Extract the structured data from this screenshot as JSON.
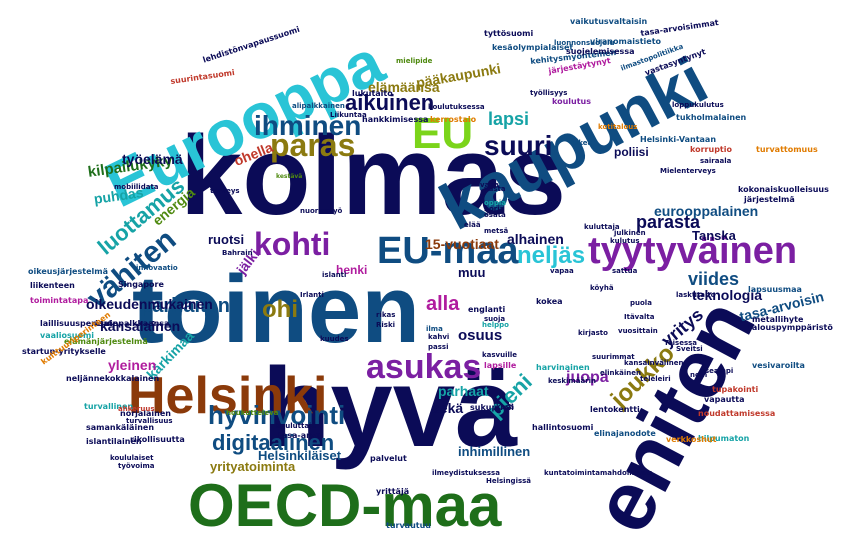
{
  "colors": {
    "navy": "#0b0b57",
    "blue": "#0f4c81",
    "teal": "#16a3a6",
    "cyan": "#29c4d6",
    "green": "#4f8a10",
    "dkgreen": "#1e6e1a",
    "lime": "#7bd41a",
    "olive": "#8b7a10",
    "brown": "#8b3a0a",
    "purple": "#7b1fa2",
    "magenta": "#b01c9e",
    "orange": "#e07b00",
    "red": "#c0392b"
  },
  "words": [
    {
      "text": "toinen",
      "color": "#0f4c81"
    },
    {
      "text": "kolmas",
      "color": "#0b0b57"
    },
    {
      "text": "hyvä",
      "color": "#0b0b57"
    },
    {
      "text": "eniten",
      "color": "#0b0b57"
    },
    {
      "text": "kaupunki",
      "color": "#0f4c81"
    },
    {
      "text": "Eurooppa",
      "color": "#29c4d6"
    },
    {
      "text": "OECD-maa",
      "color": "#1e6e1a"
    },
    {
      "text": "Helsinki",
      "color": "#8b3a0a"
    },
    {
      "text": "EU",
      "color": "#7bd41a"
    },
    {
      "text": "EU-maa",
      "color": "#0f4c81"
    },
    {
      "text": "tyytyväinen",
      "color": "#7b1fa2"
    },
    {
      "text": "asukas",
      "color": "#7b1fa2"
    },
    {
      "text": "hyvinvointi",
      "color": "#0f4c81"
    },
    {
      "text": "kohti",
      "color": "#7b1fa2"
    },
    {
      "text": "paras",
      "color": "#8b7a10"
    },
    {
      "text": "ihminen",
      "color": "#0f4c81"
    },
    {
      "text": "suuri",
      "color": "#0b0b57"
    },
    {
      "text": "neljäs",
      "color": "#29c4d6"
    },
    {
      "text": "vähiten",
      "color": "#0f4c81"
    },
    {
      "text": "luottamus",
      "color": "#16a3a6"
    },
    {
      "text": "digitaalinen",
      "color": "#0f4c81"
    },
    {
      "text": "aikuinen",
      "color": "#0b0b57"
    },
    {
      "text": "joukko",
      "color": "#8b7a10"
    },
    {
      "text": "pieni",
      "color": "#16a3a6"
    },
    {
      "text": "parhaiten",
      "color": "#0f4c81"
    },
    {
      "text": "ohi",
      "color": "#8b7a10"
    },
    {
      "text": "alla",
      "color": "#b01c9e"
    },
    {
      "text": "parasta",
      "color": "#0b0b57"
    },
    {
      "text": "yritys",
      "color": "#0b0b57"
    },
    {
      "text": "viides",
      "color": "#0f4c81"
    },
    {
      "text": "lapsi",
      "color": "#16a3a6"
    },
    {
      "text": "elämäänsä",
      "color": "#8b7a10"
    },
    {
      "text": "pääkaupunki",
      "color": "#8b7a10"
    },
    {
      "text": "kilpailukyky",
      "color": "#1e6e1a"
    },
    {
      "text": "puhdas",
      "color": "#16a3a6"
    },
    {
      "text": "energia",
      "color": "#4f8a10"
    },
    {
      "text": "ohella",
      "color": "#c0392b"
    },
    {
      "text": "työelämä",
      "color": "#0b0b57"
    },
    {
      "text": "15-vuotiaat",
      "color": "#8b3a0a"
    },
    {
      "text": "alhainen",
      "color": "#0b0b57"
    },
    {
      "text": "teknologia",
      "color": "#0b0b57"
    },
    {
      "text": "eurooppalainen",
      "color": "#0f4c81"
    },
    {
      "text": "Tanska",
      "color": "#0b0b57"
    },
    {
      "text": "tasa-arvoisin",
      "color": "#0f4c81"
    },
    {
      "text": "kansalainen",
      "color": "#0b0b57"
    },
    {
      "text": "oikeudenmukainen",
      "color": "#0b0b57"
    },
    {
      "text": "yrityatoiminta",
      "color": "#8b7a10"
    },
    {
      "text": "Helsinkiläiset",
      "color": "#0f4c81"
    },
    {
      "text": "inhimillinen",
      "color": "#0f4c81"
    },
    {
      "text": "kärkimaa",
      "color": "#16a3a6"
    },
    {
      "text": "yleinen",
      "color": "#b01c9e"
    },
    {
      "text": "osuus",
      "color": "#0b0b57"
    },
    {
      "text": "sekä",
      "color": "#0b0b57"
    },
    {
      "text": "parhaat",
      "color": "#16a3a6"
    },
    {
      "text": "juopa",
      "color": "#7b1fa2"
    },
    {
      "text": "muu",
      "color": "#0b0b57"
    },
    {
      "text": "ruotsi",
      "color": "#0b0b57"
    },
    {
      "text": "poliisi",
      "color": "#0b0b57"
    },
    {
      "text": "jälki",
      "color": "#7b1fa2"
    },
    {
      "text": "henki",
      "color": "#b01c9e"
    },
    {
      "text": "tasa-arvoisimmat",
      "color": "#0b0b57"
    },
    {
      "text": "vaikutusvaltaisin",
      "color": "#0f4c81"
    },
    {
      "text": "tyttösuomi",
      "color": "#0b0b57"
    },
    {
      "text": "luonnonsuojelu",
      "color": "#0f4c81"
    },
    {
      "text": "kestävä",
      "color": "#4f8a10"
    },
    {
      "text": "kehitysmyönteinen",
      "color": "#0f4c81"
    },
    {
      "text": "viranomaistieto",
      "color": "#0f4c81"
    },
    {
      "text": "sukupuoli",
      "color": "#0b0b57"
    },
    {
      "text": "lukutaito",
      "color": "#0b0b57"
    },
    {
      "text": "koulutus",
      "color": "#7b1fa2"
    },
    {
      "text": "Helsinki-Vantaan",
      "color": "#0f4c81"
    },
    {
      "text": "korruptio",
      "color": "#c0392b"
    },
    {
      "text": "turvattomuus",
      "color": "#e07b00"
    },
    {
      "text": "sairaala",
      "color": "#0b0b57"
    },
    {
      "text": "kokonaiskuolleisuus",
      "color": "#0b0b57"
    },
    {
      "text": "järjestelmä",
      "color": "#0b0b57"
    },
    {
      "text": "lapsuusmaa",
      "color": "#0f4c81"
    },
    {
      "text": "metallihyte",
      "color": "#0b0b57"
    },
    {
      "text": "talouspymppäristö",
      "color": "#0b0b57"
    },
    {
      "text": "vesivaroilta",
      "color": "#0f4c81"
    },
    {
      "text": "tupakointi",
      "color": "#c0392b"
    },
    {
      "text": "vapautta",
      "color": "#0b0b57"
    },
    {
      "text": "noudattamisessa",
      "color": "#c0392b"
    },
    {
      "text": "hilpumaton",
      "color": "#16a3a6"
    },
    {
      "text": "verkkoshut",
      "color": "#e07b00"
    },
    {
      "text": "elinajanodote",
      "color": "#0f4c81"
    },
    {
      "text": "kuntatoimintamahdollisuus",
      "color": "#0b0b57"
    },
    {
      "text": "innovaatio",
      "color": "#0f4c81"
    },
    {
      "text": "Singapore",
      "color": "#0b0b57"
    },
    {
      "text": "startup-yritykselle",
      "color": "#0b0b57"
    },
    {
      "text": "oikeusjärjestelmä",
      "color": "#0f4c81"
    },
    {
      "text": "laillisuusperiaate",
      "color": "#0b0b57"
    },
    {
      "text": "asuinpalkkaansa",
      "color": "#0b0b57"
    },
    {
      "text": "vaaliosuomi",
      "color": "#16a3a6"
    },
    {
      "text": "elämänjärjestelmä",
      "color": "#4f8a10"
    },
    {
      "text": "toimintatapa",
      "color": "#b01c9e"
    },
    {
      "text": "liikenteen",
      "color": "#0b0b57"
    },
    {
      "text": "neljännekokkalainen",
      "color": "#0b0b57"
    },
    {
      "text": "turvallinen",
      "color": "#16a3a6"
    },
    {
      "text": "samankäläinen",
      "color": "#0b0b57"
    },
    {
      "text": "islantilainen",
      "color": "#0b0b57"
    },
    {
      "text": "norjalainen",
      "color": "#0b0b57"
    },
    {
      "text": "rikollisuutta",
      "color": "#0b0b57"
    },
    {
      "text": "ahkeruus",
      "color": "#c0392b"
    },
    {
      "text": "koululaiset",
      "color": "#0b0b57"
    },
    {
      "text": "kulttuuriperinteen",
      "color": "#e07b00"
    },
    {
      "text": "tasa-arvo",
      "color": "#0b0b57"
    },
    {
      "text": "palvelut",
      "color": "#0b0b57"
    },
    {
      "text": "yrittäjä",
      "color": "#0b0b57"
    },
    {
      "text": "Helsingissä",
      "color": "#0b0b57"
    },
    {
      "text": "turvautuu",
      "color": "#0f4c81"
    },
    {
      "text": "ilmeydistuksessa",
      "color": "#0b0b57"
    },
    {
      "text": "hallintosuomi",
      "color": "#0b0b57"
    },
    {
      "text": "lentokentti",
      "color": "#0b0b57"
    },
    {
      "text": "elinkäinen",
      "color": "#0b0b57"
    },
    {
      "text": "harvinainen",
      "color": "#16a3a6"
    },
    {
      "text": "lapsille",
      "color": "#b01c9e"
    },
    {
      "text": "kasvuille",
      "color": "#0b0b57"
    },
    {
      "text": "lehdistönvapaussuomi",
      "color": "#0b0b57"
    },
    {
      "text": "suurintasuomi",
      "color": "#c0392b"
    },
    {
      "text": "alipalkkainen",
      "color": "#0f4c81"
    },
    {
      "text": "mielipide",
      "color": "#4f8a10"
    },
    {
      "text": "kesäolympialaiset",
      "color": "#0f4c81"
    },
    {
      "text": "suojelemisessa",
      "color": "#0b0b57"
    },
    {
      "text": "järjestäytynyt",
      "color": "#b01c9e"
    },
    {
      "text": "ilmastopolitiikka",
      "color": "#0f4c81"
    },
    {
      "text": "vastasyntynyt",
      "color": "#0b0b57"
    },
    {
      "text": "loppukulutus",
      "color": "#0b0b57"
    },
    {
      "text": "tukholmalainen",
      "color": "#0f4c81"
    },
    {
      "text": "kerrostalo",
      "color": "#e07b00"
    },
    {
      "text": "koulutuksessa",
      "color": "#0b0b57"
    },
    {
      "text": "hankkimisessa",
      "color": "#0b0b57"
    },
    {
      "text": "työllisyys",
      "color": "#0b0b57"
    },
    {
      "text": "kotitalous",
      "color": "#e07b00"
    },
    {
      "text": "mobiilidata",
      "color": "#0b0b57"
    },
    {
      "text": "turvallisuus",
      "color": "#0b0b57"
    },
    {
      "text": "terveys",
      "color": "#0b0b57"
    },
    {
      "text": "kouluttaja",
      "color": "#0b0b57"
    },
    {
      "text": "nuorisotyö",
      "color": "#0b0b57"
    },
    {
      "text": "houkutteleva",
      "color": "#4f8a10"
    },
    {
      "text": "työvoima",
      "color": "#0b0b57"
    },
    {
      "text": "rikas",
      "color": "#0b0b57"
    },
    {
      "text": "Riski",
      "color": "#0b0b57"
    },
    {
      "text": "ilma",
      "color": "#0f4c81"
    },
    {
      "text": "kahvi",
      "color": "#0b0b57"
    },
    {
      "text": "passi",
      "color": "#0b0b57"
    },
    {
      "text": "englanti",
      "color": "#0b0b57"
    },
    {
      "text": "suoja",
      "color": "#0b0b57"
    },
    {
      "text": "helppo",
      "color": "#16a3a6"
    },
    {
      "text": "kokea",
      "color": "#0b0b57"
    },
    {
      "text": "puola",
      "color": "#0b0b57"
    },
    {
      "text": "vapaa",
      "color": "#0b0b57"
    },
    {
      "text": "köyhä",
      "color": "#0b0b57"
    },
    {
      "text": "sattua",
      "color": "#0b0b57"
    },
    {
      "text": "laskutaito",
      "color": "#0b0b57"
    },
    {
      "text": "julkinen",
      "color": "#0b0b57"
    },
    {
      "text": "Bahrain",
      "color": "#0b0b57"
    },
    {
      "text": "islanti",
      "color": "#0b0b57"
    },
    {
      "text": "kuudes",
      "color": "#0b0b57"
    },
    {
      "text": "Irlanti",
      "color": "#0b0b57"
    },
    {
      "text": "vapa",
      "color": "#0b0b57"
    },
    {
      "text": "vasta",
      "color": "#0b0b57"
    },
    {
      "text": "oppia",
      "color": "#16a3a6"
    },
    {
      "text": "norja",
      "color": "#0b0b57"
    },
    {
      "text": "osata",
      "color": "#0b0b57"
    },
    {
      "text": "metsä",
      "color": "#0b0b57"
    },
    {
      "text": "kulutus",
      "color": "#0b0b57"
    },
    {
      "text": "elää",
      "color": "#0b0b57"
    },
    {
      "text": "kirjasto",
      "color": "#0b0b57"
    },
    {
      "text": "kuluttaja",
      "color": "#0b0b57"
    },
    {
      "text": "tukea",
      "color": "#0f4c81"
    },
    {
      "text": "Mielenterveys",
      "color": "#0b0b57"
    },
    {
      "text": "teleleiri",
      "color": "#0b0b57"
    },
    {
      "text": "noin",
      "color": "#0b0b57"
    },
    {
      "text": "useampi",
      "color": "#0b0b57"
    },
    {
      "text": "Liikuntaa",
      "color": "#0b0b57"
    },
    {
      "text": "Itävalta",
      "color": "#0b0b57"
    },
    {
      "text": "Toisessa",
      "color": "#0b0b57"
    },
    {
      "text": "Sveitsi",
      "color": "#0b0b57"
    },
    {
      "text": "kansainvälinen",
      "color": "#0b0b57"
    },
    {
      "text": "suurimmat",
      "color": "#0b0b57"
    },
    {
      "text": "keskimäärin",
      "color": "#0b0b57"
    },
    {
      "text": "kesä",
      "color": "#0b0b57"
    },
    {
      "text": "vuosittain",
      "color": "#0b0b57"
    }
  ]
}
